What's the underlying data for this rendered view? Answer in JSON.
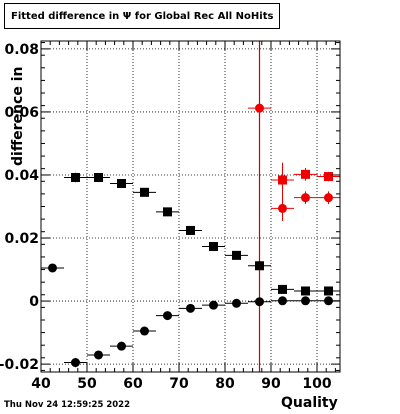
{
  "title": "Fitted difference in  Ψ  for Global Rec All NoHits",
  "timestamp": "Thu Nov 24 12:59:25 2022",
  "chart_data": {
    "type": "scatter",
    "title": "Fitted difference in  Ψ  for Global Rec All NoHits",
    "xlabel": "Quality",
    "ylabel": "difference in",
    "xlim": [
      40,
      105
    ],
    "ylim": [
      -0.0225,
      0.0825
    ],
    "grid": true,
    "x_ticks": [
      40,
      50,
      60,
      70,
      80,
      90,
      100
    ],
    "x_tick_labels": [
      "40",
      "50",
      "60",
      "70",
      "80",
      "90",
      "100"
    ],
    "y_ticks": [
      -0.02,
      0,
      0.02,
      0.04,
      0.06,
      0.08
    ],
    "y_tick_labels": [
      "-0.02",
      "0",
      "0.02",
      "0.04",
      "0.06",
      "0.08"
    ],
    "vertical_line": {
      "x": 87.5,
      "color": "#cc0000"
    },
    "series": [
      {
        "marker": "square",
        "color": "#000000",
        "points": [
          {
            "x": 47.5,
            "y": 0.0392,
            "xerr": 2.5,
            "yerr": 0.0015
          },
          {
            "x": 52.5,
            "y": 0.0392,
            "xerr": 2.5,
            "yerr": 0.0008
          },
          {
            "x": 57.5,
            "y": 0.0373,
            "xerr": 2.5,
            "yerr": 0.0008
          },
          {
            "x": 62.5,
            "y": 0.0345,
            "xerr": 2.5,
            "yerr": 0.0008
          },
          {
            "x": 67.5,
            "y": 0.0283,
            "xerr": 2.5,
            "yerr": 0.0008
          },
          {
            "x": 72.5,
            "y": 0.0224,
            "xerr": 2.5,
            "yerr": 0.0008
          },
          {
            "x": 77.5,
            "y": 0.0173,
            "xerr": 2.5,
            "yerr": 0.0008
          },
          {
            "x": 82.5,
            "y": 0.0145,
            "xerr": 2.5,
            "yerr": 0.0008
          },
          {
            "x": 87.5,
            "y": 0.0112,
            "xerr": 2.5,
            "yerr": 0.0008
          },
          {
            "x": 92.5,
            "y": 0.0037,
            "xerr": 2.5,
            "yerr": 0.0008
          },
          {
            "x": 97.5,
            "y": 0.0032,
            "xerr": 2.5,
            "yerr": 0.0008
          },
          {
            "x": 102.5,
            "y": 0.0032,
            "xerr": 2.5,
            "yerr": 0.0008
          }
        ]
      },
      {
        "marker": "circle",
        "color": "#000000",
        "points": [
          {
            "x": 42.5,
            "y": 0.0105,
            "xerr": 2.5,
            "yerr": 0.0008
          },
          {
            "x": 47.5,
            "y": -0.0195,
            "xerr": 2.5,
            "yerr": 0.0015
          },
          {
            "x": 52.5,
            "y": -0.0171,
            "xerr": 2.5,
            "yerr": 0.0008
          },
          {
            "x": 57.5,
            "y": -0.0143,
            "xerr": 2.5,
            "yerr": 0.0008
          },
          {
            "x": 62.5,
            "y": -0.0095,
            "xerr": 2.5,
            "yerr": 0.0008
          },
          {
            "x": 67.5,
            "y": -0.0046,
            "xerr": 2.5,
            "yerr": 0.0008
          },
          {
            "x": 72.5,
            "y": -0.0023,
            "xerr": 2.5,
            "yerr": 0.0008
          },
          {
            "x": 77.5,
            "y": -0.0013,
            "xerr": 2.5,
            "yerr": 0.0008
          },
          {
            "x": 82.5,
            "y": -0.0007,
            "xerr": 2.5,
            "yerr": 0.0008
          },
          {
            "x": 87.5,
            "y": -0.0002,
            "xerr": 2.5,
            "yerr": 0.0008
          },
          {
            "x": 92.5,
            "y": 0.0001,
            "xerr": 2.5,
            "yerr": 0.0008
          },
          {
            "x": 97.5,
            "y": 0.0001,
            "xerr": 2.5,
            "yerr": 0.0008
          },
          {
            "x": 102.5,
            "y": 0.0001,
            "xerr": 2.5,
            "yerr": 0.0008
          }
        ]
      },
      {
        "marker": "square",
        "color": "#ee0000",
        "points": [
          {
            "x": 92.5,
            "y": 0.0384,
            "xerr": 2.5,
            "yerr": 0.0055
          },
          {
            "x": 97.5,
            "y": 0.0402,
            "xerr": 2.5,
            "yerr": 0.002
          },
          {
            "x": 102.5,
            "y": 0.0395,
            "xerr": 2.5,
            "yerr": 0.0015
          }
        ]
      },
      {
        "marker": "circle",
        "color": "#ee0000",
        "points": [
          {
            "x": 87.5,
            "y": 0.0612,
            "xerr": 2.5,
            "yerr": 0.0015
          },
          {
            "x": 92.5,
            "y": 0.0294,
            "xerr": 2.5,
            "yerr": 0.004
          },
          {
            "x": 97.5,
            "y": 0.0328,
            "xerr": 2.5,
            "yerr": 0.002
          },
          {
            "x": 102.5,
            "y": 0.0328,
            "xerr": 2.5,
            "yerr": 0.002
          }
        ]
      }
    ]
  }
}
